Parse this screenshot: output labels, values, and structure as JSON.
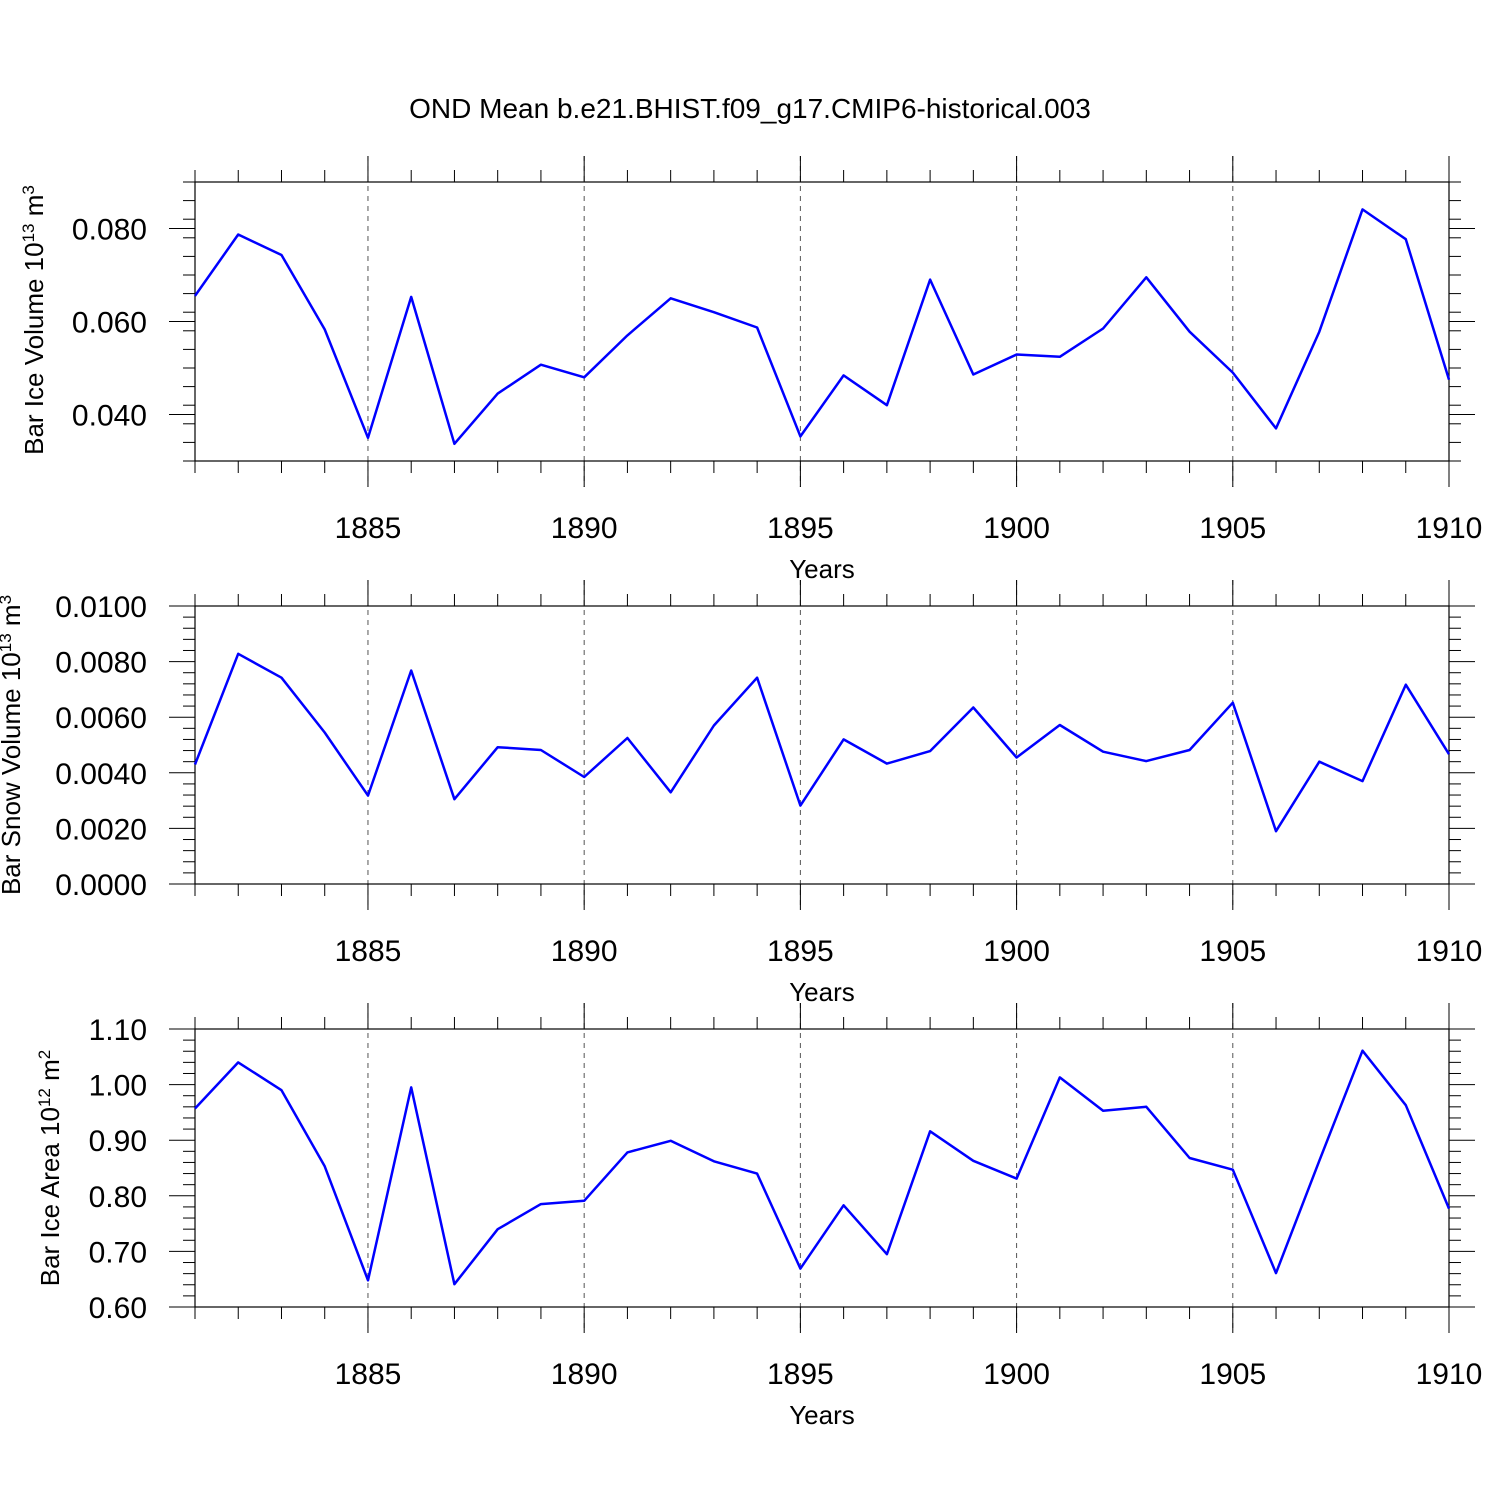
{
  "figure": {
    "title": "OND Mean b.e21.BHIST.f09_g17.CMIP6-historical.003",
    "line_color": "#0000ff"
  },
  "chart_data": [
    {
      "type": "line",
      "title": "",
      "xlabel": "Years",
      "ylabel": {
        "text": "Bar Ice Volume 10",
        "sup": "13",
        "unit": " m",
        "unit_sup": "3"
      },
      "xlim": [
        1881,
        1910
      ],
      "ylim": [
        0.03,
        0.09
      ],
      "x_ticks": [
        1885,
        1890,
        1895,
        1900,
        1905,
        1910
      ],
      "x_tick_labels": [
        "1885",
        "1890",
        "1895",
        "1900",
        "1905",
        "1910"
      ],
      "y_ticks": [
        0.04,
        0.06,
        0.08
      ],
      "y_tick_labels": [
        "0.040",
        "0.060",
        "0.080"
      ],
      "y_minor_step": 0.004,
      "grid": "vertical dashed at major x ticks",
      "x": [
        1881,
        1882,
        1883,
        1884,
        1885,
        1886,
        1887,
        1888,
        1889,
        1890,
        1891,
        1892,
        1893,
        1894,
        1895,
        1896,
        1897,
        1898,
        1899,
        1900,
        1901,
        1902,
        1903,
        1904,
        1905,
        1906,
        1907,
        1908,
        1909,
        1910
      ],
      "series": [
        {
          "name": "Bar Ice Volume",
          "values": [
            0.0655,
            0.0787,
            0.0743,
            0.0583,
            0.035,
            0.0653,
            0.0337,
            0.0445,
            0.0507,
            0.048,
            0.057,
            0.065,
            0.062,
            0.0587,
            0.0353,
            0.0484,
            0.042,
            0.069,
            0.0486,
            0.0529,
            0.0524,
            0.0585,
            0.0695,
            0.0578,
            0.049,
            0.037,
            0.0578,
            0.0841,
            0.0777,
            0.0475
          ]
        }
      ]
    },
    {
      "type": "line",
      "title": "",
      "xlabel": "Years",
      "ylabel": {
        "text": "Bar Snow Volume 10",
        "sup": "13",
        "unit": " m",
        "unit_sup": "3"
      },
      "xlim": [
        1881,
        1910
      ],
      "ylim": [
        0.0,
        0.01
      ],
      "x_ticks": [
        1885,
        1890,
        1895,
        1900,
        1905,
        1910
      ],
      "x_tick_labels": [
        "1885",
        "1890",
        "1895",
        "1900",
        "1905",
        "1910"
      ],
      "y_ticks": [
        0.0,
        0.002,
        0.004,
        0.006,
        0.008,
        0.01
      ],
      "y_tick_labels": [
        "0.0000",
        "0.0020",
        "0.0040",
        "0.0060",
        "0.0080",
        "0.0100"
      ],
      "y_minor_step": 0.0004,
      "grid": "vertical dashed at major x ticks",
      "x": [
        1881,
        1882,
        1883,
        1884,
        1885,
        1886,
        1887,
        1888,
        1889,
        1890,
        1891,
        1892,
        1893,
        1894,
        1895,
        1896,
        1897,
        1898,
        1899,
        1900,
        1901,
        1902,
        1903,
        1904,
        1905,
        1906,
        1907,
        1908,
        1909,
        1910
      ],
      "series": [
        {
          "name": "Bar Snow Volume",
          "values": [
            0.0043,
            0.00828,
            0.00742,
            0.00545,
            0.00318,
            0.00768,
            0.00305,
            0.00492,
            0.00482,
            0.00385,
            0.00525,
            0.0033,
            0.0057,
            0.00742,
            0.00282,
            0.0052,
            0.00433,
            0.00478,
            0.00635,
            0.00455,
            0.00572,
            0.00476,
            0.00442,
            0.00482,
            0.00652,
            0.0019,
            0.0044,
            0.0037,
            0.00717,
            0.00467
          ]
        }
      ]
    },
    {
      "type": "line",
      "title": "",
      "xlabel": "Years",
      "ylabel": {
        "text": "Bar Ice Area 10",
        "sup": "12",
        "unit": " m",
        "unit_sup": "2"
      },
      "xlim": [
        1881,
        1910
      ],
      "ylim": [
        0.6,
        1.1
      ],
      "x_ticks": [
        1885,
        1890,
        1895,
        1900,
        1905,
        1910
      ],
      "x_tick_labels": [
        "1885",
        "1890",
        "1895",
        "1900",
        "1905",
        "1910"
      ],
      "y_ticks": [
        0.6,
        0.7,
        0.8,
        0.9,
        1.0,
        1.1
      ],
      "y_tick_labels": [
        "0.60",
        "0.70",
        "0.80",
        "0.90",
        "1.00",
        "1.10"
      ],
      "y_minor_step": 0.02,
      "grid": "vertical dashed at major x ticks",
      "x": [
        1881,
        1882,
        1883,
        1884,
        1885,
        1886,
        1887,
        1888,
        1889,
        1890,
        1891,
        1892,
        1893,
        1894,
        1895,
        1896,
        1897,
        1898,
        1899,
        1900,
        1901,
        1902,
        1903,
        1904,
        1905,
        1906,
        1907,
        1908,
        1909,
        1910
      ],
      "series": [
        {
          "name": "Bar Ice Area",
          "values": [
            0.957,
            1.04,
            0.99,
            0.853,
            0.648,
            0.995,
            0.641,
            0.74,
            0.785,
            0.791,
            0.878,
            0.899,
            0.862,
            0.84,
            0.669,
            0.783,
            0.695,
            0.916,
            0.863,
            0.831,
            1.013,
            0.953,
            0.96,
            0.868,
            0.847,
            0.661,
            0.863,
            1.061,
            0.963,
            0.777
          ]
        }
      ]
    }
  ]
}
